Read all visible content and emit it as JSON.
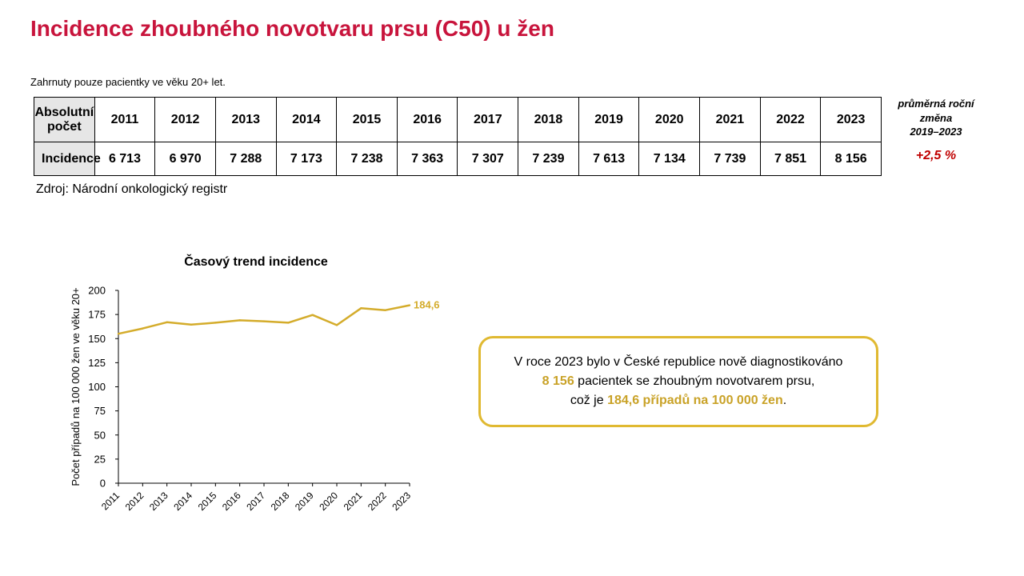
{
  "page": {
    "title": "Incidence zhoubného novotvaru prsu (C50) u žen",
    "note": "Zahrnuty pouze pacientky ve věku 20+ let.",
    "source": "Zdroj: Národní onkologický registr"
  },
  "table": {
    "header_label_line1": "Absolutní",
    "header_label_line2": "počet",
    "years": [
      "2011",
      "2012",
      "2013",
      "2014",
      "2015",
      "2016",
      "2017",
      "2018",
      "2019",
      "2020",
      "2021",
      "2022",
      "2023"
    ],
    "row_label": "Incidence",
    "values": [
      "6 713",
      "6 970",
      "7 288",
      "7 173",
      "7 238",
      "7 363",
      "7 307",
      "7 239",
      "7 613",
      "7 134",
      "7 739",
      "7 851",
      "8 156"
    ]
  },
  "avg_change": {
    "label_line1": "průměrná roční",
    "label_line2": "změna",
    "label_line3": "2019–2023",
    "value": "+2,5 %"
  },
  "callout": {
    "line1": "V roce 2023 bylo v České republice nově diagnostikováno",
    "count": "8 156",
    "line2_rest": " pacientek se zhoubným novotvarem prsu,",
    "line3_pre": "což je ",
    "rate": "184,6 případů na 100 000 žen",
    "line3_post": "."
  },
  "colors": {
    "title": "#c8143c",
    "series": "#d4ac2b",
    "avg_change": "#c00000",
    "callout_border": "#e0b931"
  },
  "chart_data": {
    "type": "line",
    "title": "Časový trend incidence",
    "xlabel": "",
    "ylabel": "Počet případů na 100 000 žen ve věku 20+",
    "x": [
      "2011",
      "2012",
      "2013",
      "2014",
      "2015",
      "2016",
      "2017",
      "2018",
      "2019",
      "2020",
      "2021",
      "2022",
      "2023"
    ],
    "series": [
      {
        "values": [
          155.0,
          160.5,
          167.0,
          164.5,
          166.5,
          169.0,
          168.0,
          166.5,
          174.5,
          164.0,
          181.5,
          179.5,
          184.6
        ]
      }
    ],
    "end_label": "184,6",
    "ylim": [
      0,
      200
    ],
    "yticks": [
      0,
      25,
      50,
      75,
      100,
      125,
      150,
      175,
      200
    ],
    "grid": false,
    "legend": "none"
  }
}
